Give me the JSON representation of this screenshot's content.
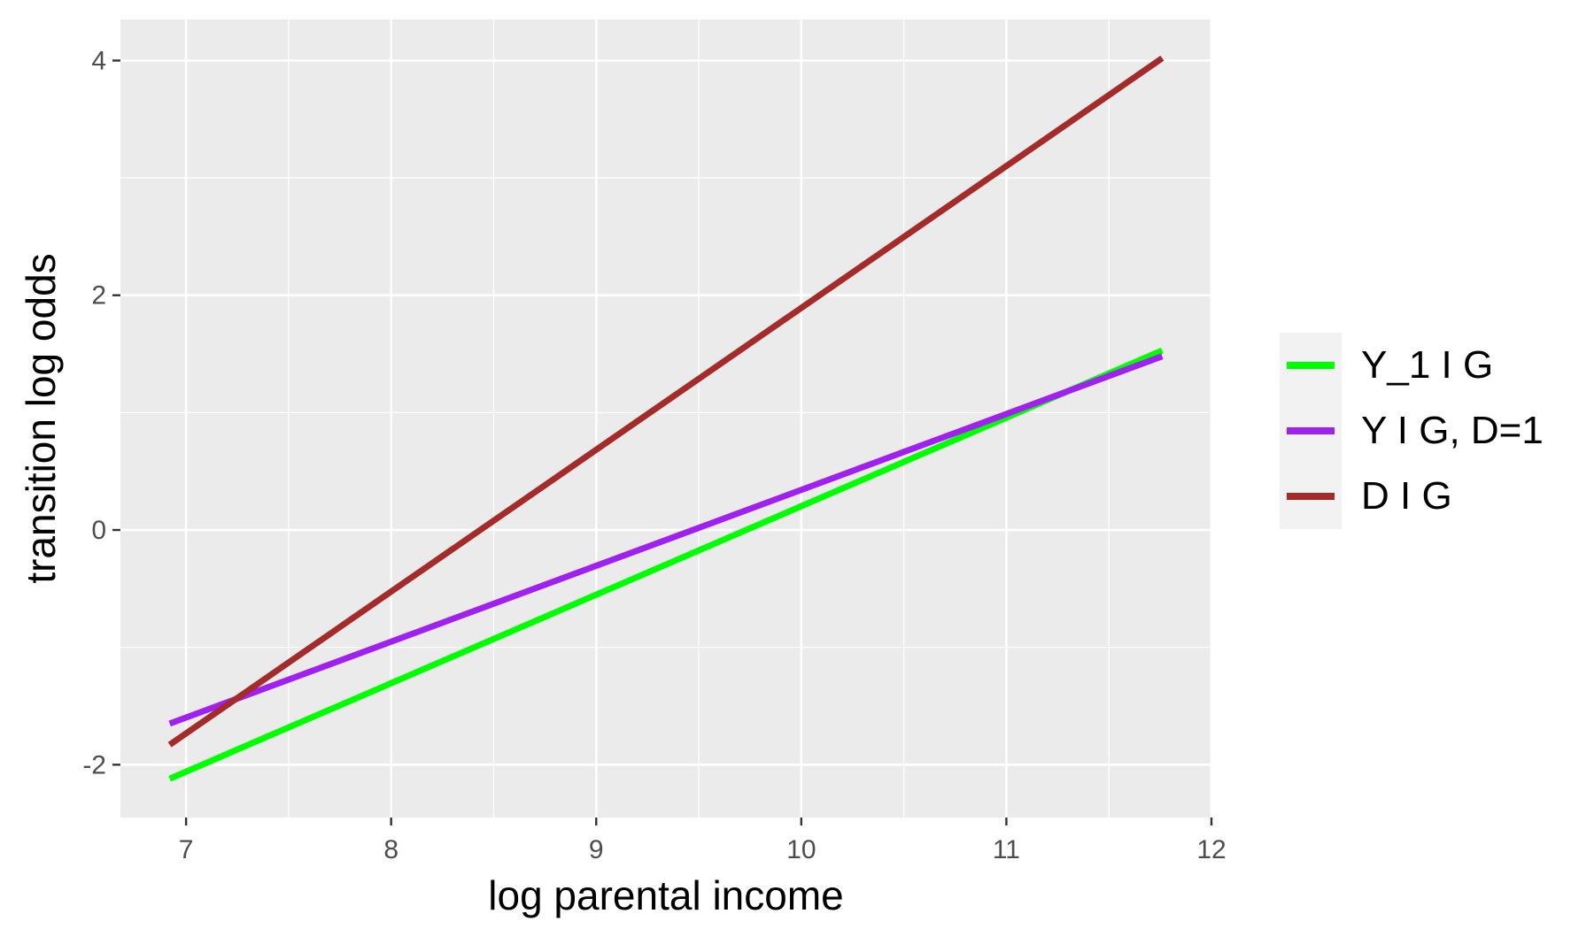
{
  "chart_data": {
    "type": "line",
    "title": "",
    "xlabel": "log parental income",
    "ylabel": "transition log odds",
    "xlim": [
      6.68,
      12.0
    ],
    "ylim": [
      -2.45,
      4.35
    ],
    "xticks": [
      7,
      8,
      9,
      10,
      11,
      12
    ],
    "yticks": [
      -2,
      0,
      2,
      4
    ],
    "xtick_labels": [
      "7",
      "8",
      "9",
      "10",
      "11",
      "12"
    ],
    "ytick_labels": [
      "-2",
      "0",
      "2",
      "4"
    ],
    "grid": true,
    "legend_position": "right",
    "series": [
      {
        "name": "Y_1 I G",
        "color": "#00ff00",
        "x": [
          6.92,
          11.76
        ],
        "y": [
          -2.12,
          1.53
        ]
      },
      {
        "name": "Y I G, D=1",
        "color": "#a020f0",
        "x": [
          6.92,
          11.76
        ],
        "y": [
          -1.65,
          1.48
        ]
      },
      {
        "name": "D I G",
        "color": "#a52a2a",
        "x": [
          6.92,
          11.76
        ],
        "y": [
          -1.83,
          4.02
        ]
      }
    ]
  }
}
